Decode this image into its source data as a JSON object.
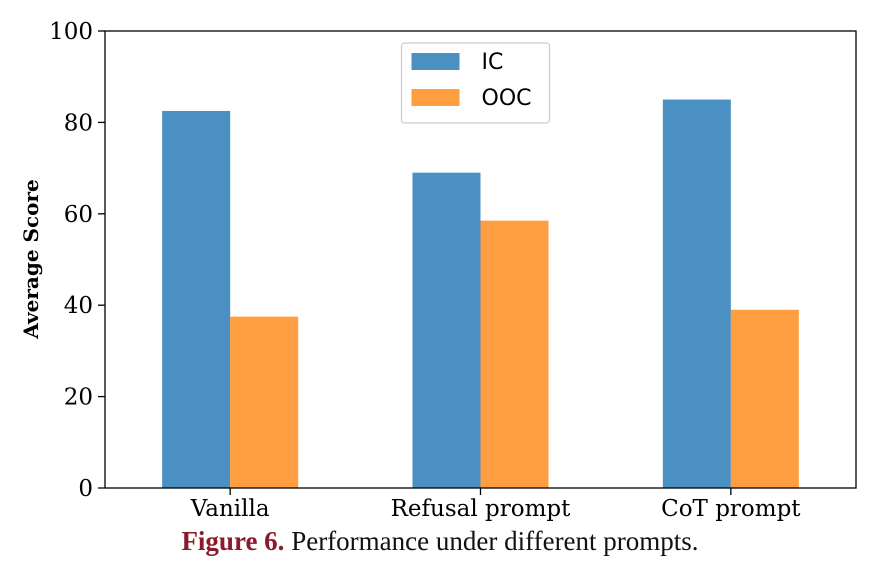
{
  "chart_data": {
    "type": "bar",
    "categories": [
      "Vanilla",
      "Refusal prompt",
      "CoT prompt"
    ],
    "series": [
      {
        "name": "IC",
        "values": [
          82.5,
          69,
          85
        ],
        "color": "#4a90c2"
      },
      {
        "name": "OOC",
        "values": [
          37.5,
          58.5,
          39
        ],
        "color": "#ff9e40"
      }
    ],
    "xlabel": "",
    "ylabel": "Average Score",
    "ylim": [
      0,
      100
    ],
    "yticks": [
      0,
      20,
      40,
      60,
      80,
      100
    ],
    "grid": false,
    "legend_position": "top-center"
  },
  "caption": {
    "label": "Figure 6.",
    "text": "Performance under different prompts."
  }
}
